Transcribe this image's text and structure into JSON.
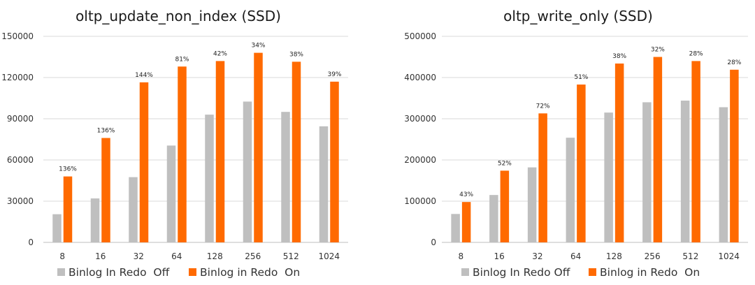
{
  "colors": {
    "off": "#bfbfbf",
    "on": "#ff6a00",
    "grid": "#d9d9d9"
  },
  "legend": {
    "off_left": "Binlog In Redo  Off",
    "on_left": "Binlog in Redo  On",
    "off_right": "Binlog In Redo Off",
    "on_right": "Binlog in Redo  On"
  },
  "chart_data": [
    {
      "type": "bar",
      "title": "oltp_update_non_index (SSD)",
      "categories": [
        "8",
        "16",
        "32",
        "64",
        "128",
        "256",
        "512",
        "1024"
      ],
      "ylim": [
        0,
        150000
      ],
      "yticks": [
        "0",
        "30000",
        "60000",
        "90000",
        "120000",
        "150000"
      ],
      "grid": true,
      "legend_position": "bottom",
      "series": [
        {
          "name": "Binlog In Redo  Off",
          "values": [
            20500,
            32000,
            47500,
            70500,
            93000,
            102500,
            95000,
            84500
          ]
        },
        {
          "name": "Binlog in Redo  On",
          "values": [
            48000,
            76000,
            116500,
            128000,
            132000,
            138000,
            131500,
            117000
          ]
        }
      ],
      "annotations": [
        "136%",
        "136%",
        "144%",
        "81%",
        "42%",
        "34%",
        "38%",
        "39%"
      ]
    },
    {
      "type": "bar",
      "title": "oltp_write_only (SSD)",
      "categories": [
        "8",
        "16",
        "32",
        "64",
        "128",
        "256",
        "512",
        "1024"
      ],
      "ylim": [
        0,
        500000
      ],
      "yticks": [
        "0",
        "100000",
        "200000",
        "300000",
        "400000",
        "500000"
      ],
      "grid": true,
      "legend_position": "bottom",
      "series": [
        {
          "name": "Binlog In Redo Off",
          "values": [
            69000,
            115000,
            182000,
            254000,
            315000,
            340000,
            344000,
            328000
          ]
        },
        {
          "name": "Binlog in Redo  On",
          "values": [
            98000,
            174000,
            313000,
            383000,
            434000,
            450000,
            440000,
            419000
          ]
        }
      ],
      "annotations": [
        "43%",
        "52%",
        "72%",
        "51%",
        "38%",
        "32%",
        "28%",
        "28%"
      ]
    }
  ]
}
